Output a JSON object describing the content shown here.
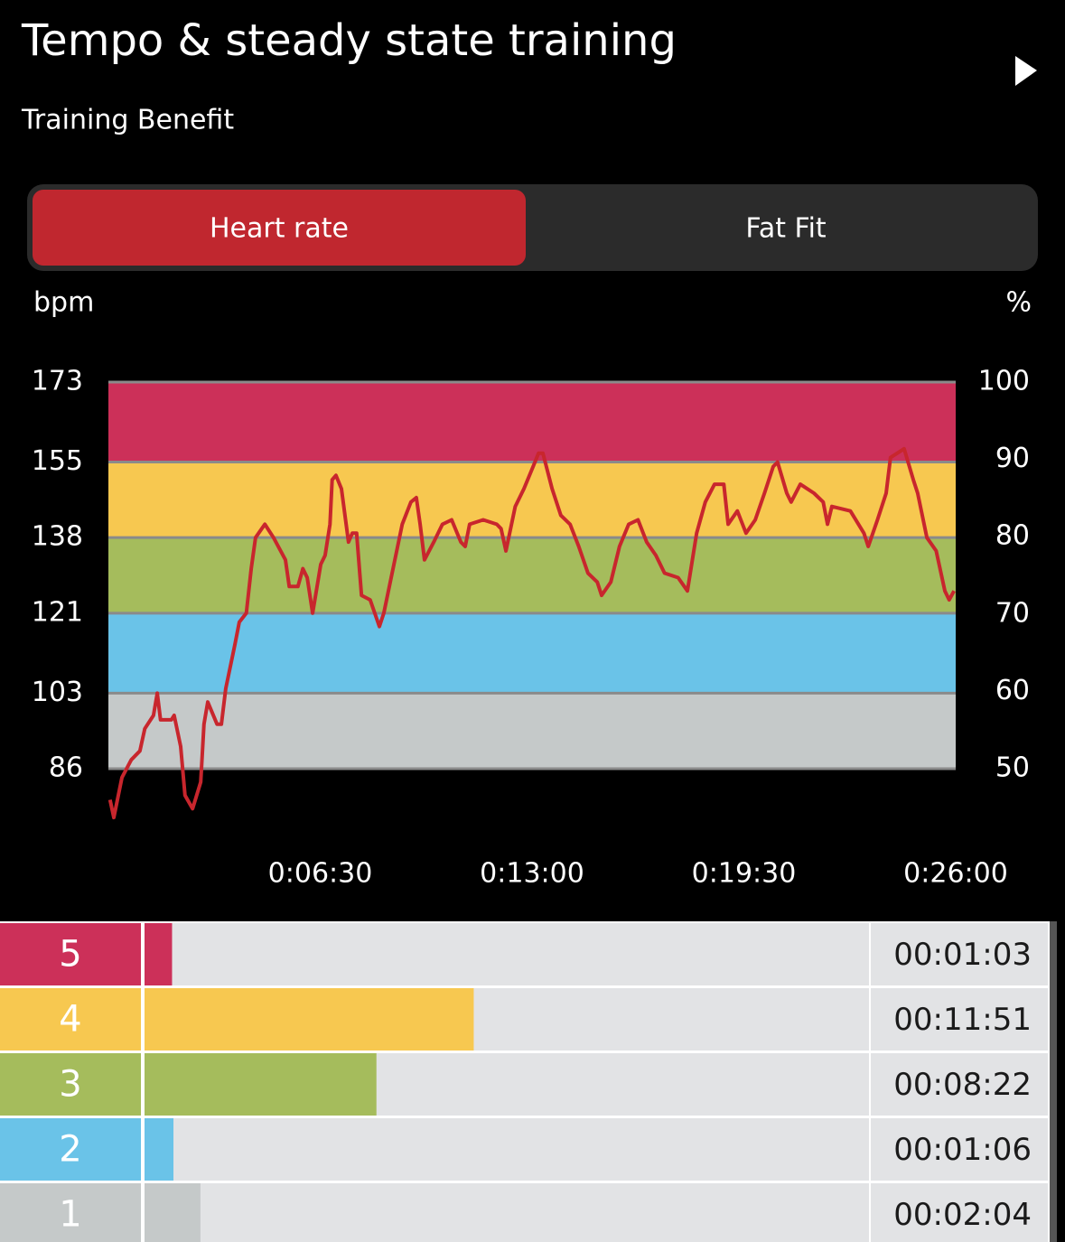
{
  "header": {
    "title": "Tempo & steady state training",
    "subtitle": "Training Benefit"
  },
  "tabs": [
    "Heart rate",
    "Fat Fit"
  ],
  "chart_data": {
    "type": "line",
    "ylabel": "bpm",
    "y2label": "%",
    "ylim": [
      86,
      173
    ],
    "yticks": [
      86,
      103,
      121,
      138,
      155,
      173
    ],
    "y2lim": [
      50,
      100
    ],
    "y2ticks": [
      50,
      60,
      70,
      80,
      90,
      100
    ],
    "xlim": [
      0,
      1560
    ],
    "xticks": [
      {
        "value": 390,
        "label": "0:06:30"
      },
      {
        "value": 780,
        "label": "0:13:00"
      },
      {
        "value": 1170,
        "label": "0:19:30"
      },
      {
        "value": 1560,
        "label": "0:26:00"
      }
    ],
    "x": [
      3,
      10,
      25,
      42,
      58,
      67,
      83,
      90,
      96,
      116,
      121,
      133,
      141,
      155,
      170,
      176,
      183,
      200,
      208,
      216,
      233,
      241,
      254,
      263,
      271,
      288,
      304,
      326,
      333,
      349,
      358,
      366,
      376,
      391,
      399,
      408,
      412,
      419,
      429,
      442,
      449,
      457,
      466,
      482,
      499,
      507,
      524,
      541,
      557,
      567,
      574,
      582,
      599,
      615,
      632,
      649,
      657,
      665,
      690,
      715,
      723,
      732,
      749,
      765,
      782,
      792,
      800,
      817,
      833,
      850,
      866,
      883,
      900,
      908,
      925,
      941,
      958,
      975,
      991,
      1008,
      1024,
      1049,
      1066,
      1083,
      1099,
      1116,
      1133,
      1141,
      1158,
      1174,
      1191,
      1208,
      1224,
      1232,
      1249,
      1257,
      1274,
      1299,
      1316,
      1324,
      1332,
      1366,
      1391,
      1399,
      1416,
      1432,
      1440,
      1465,
      1482,
      1490,
      1507,
      1524,
      1540,
      1548,
      1557
    ],
    "series": [
      {
        "color": "#c8262d",
        "values": [
          79,
          75,
          84,
          88,
          90,
          95,
          98,
          103,
          97,
          97,
          98,
          91,
          80,
          77,
          83,
          96,
          101,
          96,
          96,
          104,
          114,
          119,
          121,
          131,
          138,
          141,
          138,
          133,
          127,
          127,
          131,
          129,
          121,
          132,
          134,
          141,
          151,
          152,
          149,
          137,
          139,
          139,
          125,
          124,
          118,
          121,
          131,
          141,
          146,
          147,
          141,
          133,
          137,
          141,
          142,
          137,
          136,
          141,
          142,
          141,
          140,
          135,
          145,
          149,
          154,
          157,
          157,
          149,
          143,
          141,
          136,
          130,
          128,
          125,
          128,
          136,
          141,
          142,
          137,
          134,
          130,
          129,
          126,
          139,
          146,
          150,
          150,
          141,
          144,
          139,
          142,
          148,
          154,
          155,
          148,
          146,
          150,
          148,
          146,
          141,
          145,
          144,
          139,
          136,
          142,
          148,
          156,
          158,
          151,
          148,
          138,
          135,
          126,
          124,
          126
        ]
      }
    ],
    "zone_colors": [
      "#c5c9c9",
      "#6ac3e8",
      "#a5bc5c",
      "#f7c850",
      "#cc3059"
    ],
    "grid": true
  },
  "zones": [
    {
      "name": "5",
      "color": "#cc3059",
      "time": {
        "value": 63,
        "label": "00:01:03"
      }
    },
    {
      "name": "4",
      "color": "#f7c850",
      "time": {
        "value": 711,
        "label": "00:11:51"
      }
    },
    {
      "name": "3",
      "color": "#a5bc5c",
      "time": {
        "value": 502,
        "label": "00:08:22"
      }
    },
    {
      "name": "2",
      "color": "#6ac3e8",
      "time": {
        "value": 66,
        "label": "00:01:06"
      }
    },
    {
      "name": "1",
      "color": "#c5c9c9",
      "time": {
        "value": 124,
        "label": "00:02:04"
      }
    }
  ]
}
